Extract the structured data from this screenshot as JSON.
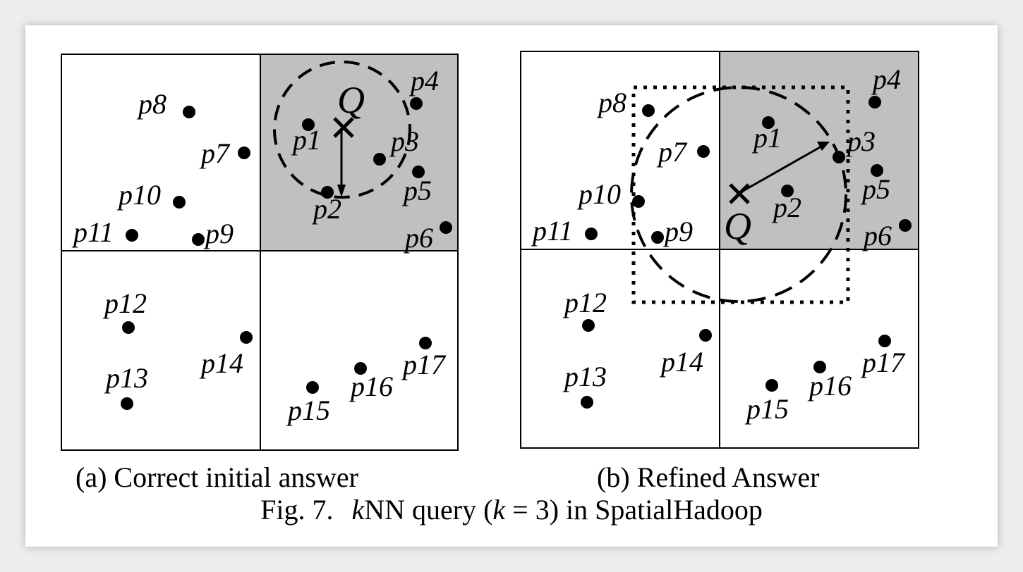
{
  "panels": [
    {
      "id": "a",
      "caption_prefix": "(a)",
      "caption": "Correct initial answer",
      "query_label": "Q",
      "points": [
        {
          "name": "p1",
          "label": "p1"
        },
        {
          "name": "p2",
          "label": "p2"
        },
        {
          "name": "p3",
          "label": "p3"
        },
        {
          "name": "p4",
          "label": "p4"
        },
        {
          "name": "p5",
          "label": "p5"
        },
        {
          "name": "p6",
          "label": "p6"
        },
        {
          "name": "p7",
          "label": "p7"
        },
        {
          "name": "p8",
          "label": "p8"
        },
        {
          "name": "p9",
          "label": "p9"
        },
        {
          "name": "p10",
          "label": "p10"
        },
        {
          "name": "p11",
          "label": "p11"
        },
        {
          "name": "p12",
          "label": "p12"
        },
        {
          "name": "p13",
          "label": "p13"
        },
        {
          "name": "p14",
          "label": "p14"
        },
        {
          "name": "p15",
          "label": "p15"
        },
        {
          "name": "p16",
          "label": "p16"
        },
        {
          "name": "p17",
          "label": "p17"
        }
      ]
    },
    {
      "id": "b",
      "caption_prefix": "(b)",
      "caption": "Refined Answer",
      "query_label": "Q",
      "points": [
        {
          "name": "p1",
          "label": "p1"
        },
        {
          "name": "p2",
          "label": "p2"
        },
        {
          "name": "p3",
          "label": "p3"
        },
        {
          "name": "p4",
          "label": "p4"
        },
        {
          "name": "p5",
          "label": "p5"
        },
        {
          "name": "p6",
          "label": "p6"
        },
        {
          "name": "p7",
          "label": "p7"
        },
        {
          "name": "p8",
          "label": "p8"
        },
        {
          "name": "p9",
          "label": "p9"
        },
        {
          "name": "p10",
          "label": "p10"
        },
        {
          "name": "p11",
          "label": "p11"
        },
        {
          "name": "p12",
          "label": "p12"
        },
        {
          "name": "p13",
          "label": "p13"
        },
        {
          "name": "p14",
          "label": "p14"
        },
        {
          "name": "p15",
          "label": "p15"
        },
        {
          "name": "p16",
          "label": "p16"
        },
        {
          "name": "p17",
          "label": "p17"
        }
      ]
    }
  ],
  "figure": {
    "number": "Fig. 7.",
    "k_prefix": "k",
    "title_mid": "NN query (",
    "k_var": "k",
    "k_eq": " = 3) in SpatialHadoop"
  },
  "colors": {
    "shaded_cell": "#c0c0c0",
    "ink": "#000000",
    "background": "#ffffff"
  }
}
